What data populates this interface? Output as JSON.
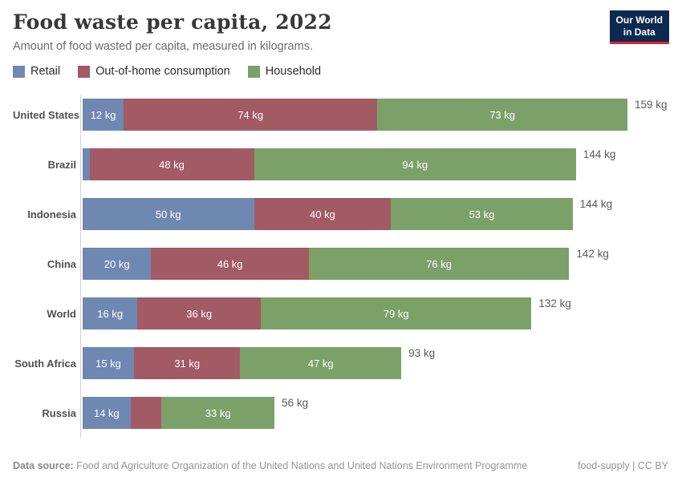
{
  "header": {
    "title": "Food waste per capita, 2022",
    "subtitle": "Amount of food wasted per capita, measured in kilograms."
  },
  "logo": {
    "line1": "Our World",
    "line2": "in Data"
  },
  "legend": [
    {
      "label": "Retail",
      "color": "#6f88b2"
    },
    {
      "label": "Out-of-home consumption",
      "color": "#a25a64"
    },
    {
      "label": "Household",
      "color": "#7ba169"
    }
  ],
  "chart_data": {
    "type": "bar",
    "orientation": "horizontal",
    "stacked": true,
    "unit": "kg",
    "xlim": [
      0,
      159
    ],
    "grid": false,
    "legend_position": "top",
    "series_names": [
      "Retail",
      "Out-of-home consumption",
      "Household"
    ],
    "categories": [
      "United States",
      "Brazil",
      "Indonesia",
      "China",
      "World",
      "South Africa",
      "Russia"
    ],
    "rows": [
      {
        "category": "United States",
        "values": [
          12,
          74,
          73
        ],
        "labels": [
          "12 kg",
          "74 kg",
          "73 kg"
        ],
        "total": 159,
        "total_label": "159 kg"
      },
      {
        "category": "Brazil",
        "values": [
          2,
          48,
          94
        ],
        "labels": [
          "",
          "48 kg",
          "94 kg"
        ],
        "total": 144,
        "total_label": "144 kg"
      },
      {
        "category": "Indonesia",
        "values": [
          50,
          40,
          53
        ],
        "labels": [
          "50 kg",
          "40 kg",
          "53 kg"
        ],
        "total": 144,
        "total_label": "144 kg"
      },
      {
        "category": "China",
        "values": [
          20,
          46,
          76
        ],
        "labels": [
          "20 kg",
          "46 kg",
          "76 kg"
        ],
        "total": 142,
        "total_label": "142 kg"
      },
      {
        "category": "World",
        "values": [
          16,
          36,
          79
        ],
        "labels": [
          "16 kg",
          "36 kg",
          "79 kg"
        ],
        "total": 132,
        "total_label": "132 kg"
      },
      {
        "category": "South Africa",
        "values": [
          15,
          31,
          47
        ],
        "labels": [
          "15 kg",
          "31 kg",
          "47 kg"
        ],
        "total": 93,
        "total_label": "93 kg"
      },
      {
        "category": "Russia",
        "values": [
          14,
          9,
          33
        ],
        "labels": [
          "14 kg",
          "",
          "33 kg"
        ],
        "total": 56,
        "total_label": "56 kg"
      }
    ]
  },
  "footer": {
    "data_source_label": "Data source:",
    "data_source_text": " Food and Agriculture Organization of the United Nations and United Nations Environment Programme",
    "license": "food-supply | CC BY"
  },
  "colors": {
    "retail": "#6f88b2",
    "out_of_home": "#a25a64",
    "household": "#7ba169",
    "logo_bg": "#0c2a50",
    "logo_underline": "#e0232a",
    "axis_line": "#d0d0d0",
    "title_text": "#383838",
    "muted_text": "#6b6b6b"
  }
}
